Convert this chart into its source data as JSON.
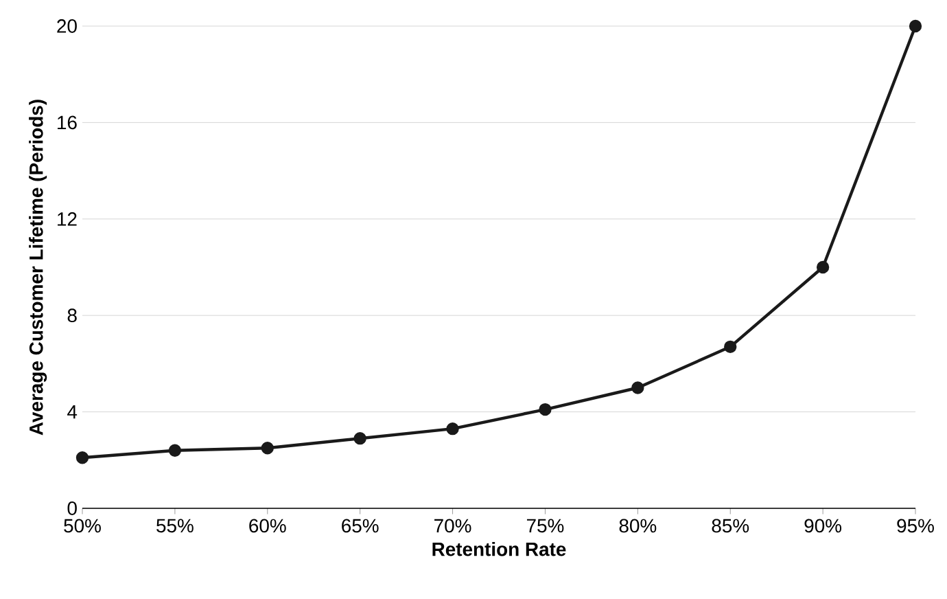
{
  "chart_data": {
    "type": "line",
    "xlabel": "Retention Rate",
    "ylabel": "Average Customer Lifetime (Periods)",
    "categories": [
      "50%",
      "55%",
      "60%",
      "65%",
      "70%",
      "75%",
      "80%",
      "85%",
      "90%",
      "95%"
    ],
    "series": [
      {
        "color": "#1a1a1a",
        "values": [
          2.1,
          2.4,
          2.5,
          2.9,
          3.3,
          4.1,
          5.0,
          6.7,
          10,
          20
        ]
      }
    ],
    "ylim": [
      0,
      20
    ],
    "yticks": [
      0,
      4,
      8,
      12,
      16,
      20
    ],
    "grid": "y",
    "marker": "circle",
    "line_style": "solid"
  }
}
